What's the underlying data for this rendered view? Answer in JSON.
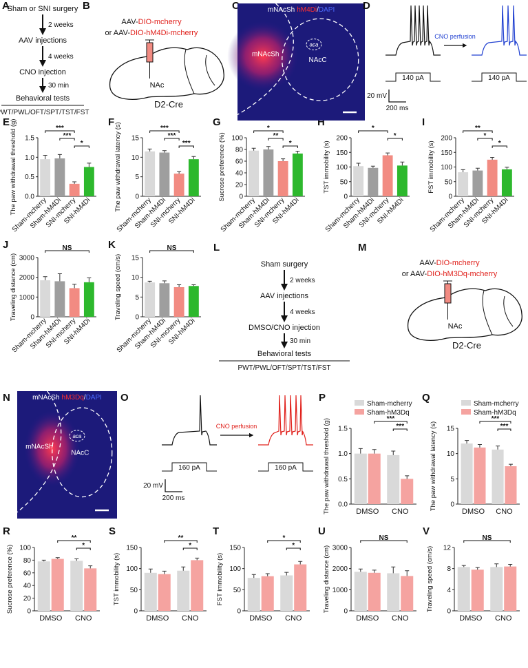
{
  "chart_data": [
    {
      "type": "bar",
      "panel": "E",
      "ylabel": "The paw withdrawal threshold (g)",
      "categories": [
        "Sham-mcherry",
        "Sham-hM4Di",
        "SNI-mcherry",
        "SNI-hM4Di"
      ],
      "values": [
        0.95,
        0.97,
        0.32,
        0.75
      ],
      "errors": [
        0.1,
        0.1,
        0.05,
        0.1
      ],
      "colors": [
        "#d9d9d9",
        "#9e9e9e",
        "#f28b82",
        "#2db82d"
      ],
      "ylim": [
        0,
        1.5
      ],
      "yticks": [
        {
          "value": 0,
          "label": "0.0"
        },
        0.5,
        {
          "value": 1,
          "label": "1.0"
        },
        1.5
      ],
      "annotations": [
        {
          "label": "***",
          "bars": [
            0,
            2
          ]
        },
        {
          "label": "***",
          "bars": [
            1,
            2
          ]
        },
        {
          "label": "*",
          "bars": [
            2,
            3
          ]
        }
      ]
    },
    {
      "type": "bar",
      "panel": "F",
      "ylabel": "The paw withdrawal latency (s)",
      "categories": [
        "Sham-mcherry",
        "Sham-hM4Di",
        "SNI-mcherry",
        "SNI-hM4Di"
      ],
      "values": [
        11.5,
        11.2,
        5.8,
        9.5
      ],
      "errors": [
        0.6,
        0.5,
        0.5,
        0.7
      ],
      "colors": [
        "#d9d9d9",
        "#9e9e9e",
        "#f28b82",
        "#2db82d"
      ],
      "ylim": [
        0,
        15
      ],
      "yticks": [
        0,
        5,
        10,
        15
      ],
      "annotations": [
        {
          "label": "***",
          "bars": [
            0,
            2
          ]
        },
        {
          "label": "***",
          "bars": [
            1,
            2
          ]
        },
        {
          "label": "***",
          "bars": [
            2,
            3
          ]
        }
      ]
    },
    {
      "type": "bar",
      "panel": "G",
      "ylabel": "Sucrose preference (%)",
      "categories": [
        "Sham-mcherry",
        "Sham-hM4Di",
        "SNI-mcherry",
        "SNI-hM4Di"
      ],
      "values": [
        78,
        80,
        60,
        73
      ],
      "errors": [
        4,
        5,
        4,
        4
      ],
      "colors": [
        "#d9d9d9",
        "#9e9e9e",
        "#f28b82",
        "#2db82d"
      ],
      "ylim": [
        0,
        100
      ],
      "yticks": [
        0,
        20,
        40,
        60,
        80,
        100
      ],
      "annotations": [
        {
          "label": "*",
          "bars": [
            0,
            2
          ]
        },
        {
          "label": "**",
          "bars": [
            1,
            2
          ]
        },
        {
          "label": "*",
          "bars": [
            2,
            3
          ]
        }
      ]
    },
    {
      "type": "bar",
      "panel": "H",
      "ylabel": "TST immobility (s)",
      "categories": [
        "Sham-mcherry",
        "Sham-hM4Di",
        "SNI-mcherry",
        "SNI-hM4Di"
      ],
      "values": [
        103,
        97,
        140,
        105
      ],
      "errors": [
        10,
        6,
        8,
        12
      ],
      "colors": [
        "#d9d9d9",
        "#9e9e9e",
        "#f28b82",
        "#2db82d"
      ],
      "ylim": [
        0,
        200
      ],
      "yticks": [
        0,
        50,
        100,
        150,
        200
      ],
      "annotations": [
        {
          "label": "*",
          "bars": [
            0,
            2
          ]
        },
        {
          "label": "*",
          "bars": [
            2,
            3
          ]
        }
      ]
    },
    {
      "type": "bar",
      "panel": "I",
      "ylabel": "FST immobility (s)",
      "categories": [
        "Sham-mcherry",
        "Sham-hM4Di",
        "SNI-mcherry",
        "SNI-hM4Di"
      ],
      "values": [
        82,
        88,
        125,
        92
      ],
      "errors": [
        9,
        8,
        8,
        7
      ],
      "colors": [
        "#d9d9d9",
        "#9e9e9e",
        "#f28b82",
        "#2db82d"
      ],
      "ylim": [
        0,
        200
      ],
      "yticks": [
        0,
        50,
        100,
        150,
        200
      ],
      "annotations": [
        {
          "label": "**",
          "bars": [
            0,
            2
          ]
        },
        {
          "label": "*",
          "bars": [
            1,
            2
          ]
        },
        {
          "label": "*",
          "bars": [
            2,
            3
          ]
        }
      ]
    },
    {
      "type": "bar",
      "panel": "J",
      "ylabel": "Traveling distance (cm)",
      "categories": [
        "Sham-mcherry",
        "Sham-hM4Di",
        "SNI-mcherry",
        "SNI-hM4Di"
      ],
      "values": [
        1850,
        1800,
        1450,
        1750
      ],
      "errors": [
        180,
        380,
        200,
        220
      ],
      "colors": [
        "#d9d9d9",
        "#9e9e9e",
        "#f28b82",
        "#2db82d"
      ],
      "ylim": [
        0,
        3000
      ],
      "yticks": [
        0,
        1000,
        2000,
        3000
      ],
      "annotations": [
        {
          "label": "NS",
          "bars": [
            0,
            3
          ]
        }
      ]
    },
    {
      "type": "bar",
      "panel": "K",
      "ylabel": "Traveling speed (cm/s)",
      "categories": [
        "Sham-mcherry",
        "Sham-hM4Di",
        "SNI-mcherry",
        "SNI-hM4Di"
      ],
      "values": [
        8.7,
        8.5,
        7.5,
        7.8
      ],
      "errors": [
        0.3,
        0.6,
        0.6,
        0.3
      ],
      "colors": [
        "#d9d9d9",
        "#9e9e9e",
        "#f28b82",
        "#2db82d"
      ],
      "ylim": [
        0,
        15
      ],
      "yticks": [
        0,
        5,
        10,
        15
      ],
      "annotations": [
        {
          "label": "NS",
          "bars": [
            0,
            3
          ]
        }
      ]
    },
    {
      "type": "grouped_bar",
      "panel": "P",
      "ylabel": "The paw withdrawal threshold (g)",
      "categories": [
        "DMSO",
        "CNO"
      ],
      "series": [
        {
          "name": "Sham-mcherry",
          "color": "#d9d9d9",
          "values": [
            1.0,
            0.97
          ],
          "errors": [
            0.1,
            0.08
          ]
        },
        {
          "name": "Sham-hM3Dq",
          "color": "#f5a3a0",
          "values": [
            1.0,
            0.5
          ],
          "errors": [
            0.08,
            0.06
          ]
        }
      ],
      "ylim": [
        0,
        1.5
      ],
      "yticks": [
        {
          "value": 0,
          "label": "0.0"
        },
        0.5,
        {
          "value": 1,
          "label": "1.0"
        },
        1.5
      ],
      "legend": "top-left",
      "annotations": [
        {
          "label": "***",
          "bars": [
            1,
            3
          ]
        },
        {
          "label": "***",
          "bars": [
            2,
            3
          ]
        }
      ]
    },
    {
      "type": "grouped_bar",
      "panel": "Q",
      "ylabel": "The paw withdrawal latency (s)",
      "categories": [
        "DMSO",
        "CNO"
      ],
      "series": [
        {
          "name": "Sham-mcherry",
          "color": "#d9d9d9",
          "values": [
            12,
            10.8
          ],
          "errors": [
            0.6,
            0.7
          ]
        },
        {
          "name": "Sham-hM3Dq",
          "color": "#f5a3a0",
          "values": [
            11.2,
            7.5
          ],
          "errors": [
            0.6,
            0.4
          ]
        }
      ],
      "ylim": [
        0,
        15
      ],
      "yticks": [
        0,
        5,
        10,
        15
      ],
      "legend": "top-right",
      "annotations": [
        {
          "label": "***",
          "bars": [
            1,
            3
          ]
        },
        {
          "label": "***",
          "bars": [
            2,
            3
          ]
        }
      ]
    },
    {
      "type": "grouped_bar",
      "panel": "R",
      "ylabel": "Sucrose preference (%)",
      "categories": [
        "DMSO",
        "CNO"
      ],
      "series": [
        {
          "name": "Sham-mcherry",
          "color": "#d9d9d9",
          "values": [
            78,
            79
          ],
          "errors": [
            2,
            3
          ]
        },
        {
          "name": "Sham-hM3Dq",
          "color": "#f5a3a0",
          "values": [
            82,
            67
          ],
          "errors": [
            2,
            4
          ]
        }
      ],
      "ylim": [
        0,
        100
      ],
      "yticks": [
        0,
        20,
        40,
        60,
        80,
        100
      ],
      "annotations": [
        {
          "label": "**",
          "bars": [
            1,
            3
          ]
        },
        {
          "label": "*",
          "bars": [
            2,
            3
          ]
        }
      ]
    },
    {
      "type": "grouped_bar",
      "panel": "S",
      "ylabel": "TST immobility (s)",
      "categories": [
        "DMSO",
        "CNO"
      ],
      "series": [
        {
          "name": "Sham-mcherry",
          "color": "#d9d9d9",
          "values": [
            90,
            95
          ],
          "errors": [
            9,
            9
          ]
        },
        {
          "name": "Sham-hM3Dq",
          "color": "#f5a3a0",
          "values": [
            87,
            120
          ],
          "errors": [
            7,
            5
          ]
        }
      ],
      "ylim": [
        0,
        150
      ],
      "yticks": [
        0,
        50,
        100,
        150
      ],
      "annotations": [
        {
          "label": "**",
          "bars": [
            1,
            3
          ]
        },
        {
          "label": "*",
          "bars": [
            2,
            3
          ]
        }
      ]
    },
    {
      "type": "grouped_bar",
      "panel": "T",
      "ylabel": "FST immobility (s)",
      "categories": [
        "DMSO",
        "CNO"
      ],
      "series": [
        {
          "name": "Sham-mcherry",
          "color": "#d9d9d9",
          "values": [
            78,
            84
          ],
          "errors": [
            8,
            7
          ]
        },
        {
          "name": "Sham-hM3Dq",
          "color": "#f5a3a0",
          "values": [
            82,
            110
          ],
          "errors": [
            6,
            7
          ]
        }
      ],
      "ylim": [
        0,
        150
      ],
      "yticks": [
        0,
        50,
        100,
        150
      ],
      "annotations": [
        {
          "label": "*",
          "bars": [
            1,
            3
          ]
        },
        {
          "label": "*",
          "bars": [
            2,
            3
          ]
        }
      ]
    },
    {
      "type": "grouped_bar",
      "panel": "U",
      "ylabel": "Traveling distance (cm)",
      "categories": [
        "DMSO",
        "CNO"
      ],
      "series": [
        {
          "name": "Sham-mcherry",
          "color": "#d9d9d9",
          "values": [
            1850,
            1780
          ],
          "errors": [
            130,
            300
          ]
        },
        {
          "name": "Sham-hM3Dq",
          "color": "#f5a3a0",
          "values": [
            1800,
            1650
          ],
          "errors": [
            130,
            250
          ]
        }
      ],
      "ylim": [
        0,
        3000
      ],
      "yticks": [
        0,
        1000,
        2000,
        3000
      ],
      "annotations": [
        {
          "label": "NS",
          "bars": [
            0,
            3
          ]
        }
      ]
    },
    {
      "type": "grouped_bar",
      "panel": "V",
      "ylabel": "Traveling speed (cm/s)",
      "categories": [
        "DMSO",
        "CNO"
      ],
      "series": [
        {
          "name": "Sham-mcherry",
          "color": "#d9d9d9",
          "values": [
            8.3,
            8.3
          ],
          "errors": [
            0.3,
            0.6
          ]
        },
        {
          "name": "Sham-hM3Dq",
          "color": "#f5a3a0",
          "values": [
            7.8,
            8.4
          ],
          "errors": [
            0.4,
            0.4
          ]
        }
      ],
      "ylim": [
        0,
        12
      ],
      "yticks": [
        0,
        4,
        8,
        12
      ],
      "annotations": [
        {
          "label": "NS",
          "bars": [
            0,
            3
          ]
        }
      ]
    }
  ],
  "panels": {
    "A": {
      "label": "A",
      "steps": [
        "Sham or SNI surgery",
        "AAV injections",
        "CNO injection",
        "Behavioral tests"
      ],
      "intervals": [
        "2 weeks",
        "4 weeks",
        "30 min"
      ],
      "tests": "PWT/PWL/OFT/SPT/TST/FST"
    },
    "B": {
      "label": "B",
      "line1": [
        "AAV-",
        "DIO-mcherry"
      ],
      "line2": [
        "or AAV-",
        "DIO-hM4Di-mcherry"
      ],
      "region": "NAc",
      "mouse": "D2-Cre"
    },
    "C": {
      "label": "C",
      "title": [
        "mNAcSh",
        "hM4Di",
        "/",
        "DAPI"
      ],
      "regions": [
        "mNAcSh",
        "aca",
        "NAcC"
      ]
    },
    "D": {
      "label": "D",
      "perfusion": "CNO perfusion",
      "current": [
        "140 pA",
        "140 pA"
      ],
      "scale": [
        "20 mV",
        "200 ms"
      ]
    },
    "L": {
      "label": "L",
      "steps": [
        "Sham surgery",
        "AAV injections",
        "DMSO/CNO injection",
        "Behavioral tests"
      ],
      "intervals": [
        "2 weeks",
        "4 weeks",
        "30 min"
      ],
      "tests": "PWT/PWL/OFT/SPT/TST/FST"
    },
    "M": {
      "label": "M",
      "line1": [
        "AAV-",
        "DIO-mcherry"
      ],
      "line2": [
        "or AAV-",
        "DIO-hM3Dq-mcherry"
      ],
      "region": "NAc",
      "mouse": "D2-Cre"
    },
    "N": {
      "label": "N",
      "title": [
        "mNAcSh",
        "hM3Dq",
        "/",
        "DAPI"
      ],
      "regions": [
        "mNAcSh",
        "aca",
        "NAcC"
      ]
    },
    "O": {
      "label": "O",
      "perfusion": "CNO perfusion",
      "current": [
        "160 pA",
        "160 pA"
      ],
      "scale": [
        "20 mV",
        "200 ms"
      ]
    }
  }
}
